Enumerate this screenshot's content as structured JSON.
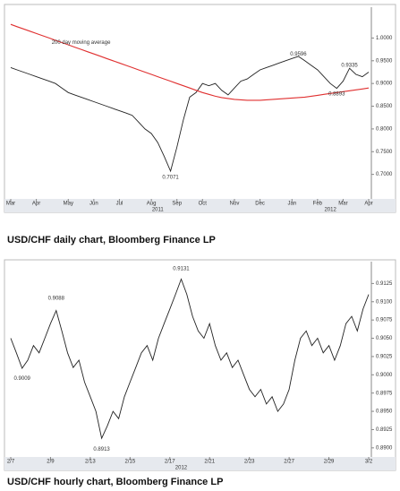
{
  "chart_data": [
    {
      "type": "line",
      "title": "USD/CHF daily chart, Bloomberg Finance LP",
      "ylim": [
        0.65,
        1.06
      ],
      "yticks": [
        {
          "value": 0.7,
          "label": "0.7000"
        },
        {
          "value": 0.75,
          "label": "0.7500"
        },
        {
          "value": 0.8,
          "label": "0.8000"
        },
        {
          "value": 0.85,
          "label": "0.8500"
        },
        {
          "value": 0.9,
          "label": "0.9000"
        },
        {
          "value": 0.95,
          "label": "0.9500"
        },
        {
          "value": 1.0,
          "label": "1.0000"
        }
      ],
      "xlim": [
        0,
        56
      ],
      "xticks": [
        {
          "value": 0,
          "label": "Mar"
        },
        {
          "value": 4,
          "label": "Apr"
        },
        {
          "value": 9,
          "label": "May"
        },
        {
          "value": 13,
          "label": "Jun"
        },
        {
          "value": 17,
          "label": "Jul"
        },
        {
          "value": 22,
          "label": "Aug"
        },
        {
          "value": 26,
          "label": "Sep"
        },
        {
          "value": 30,
          "label": "Oct"
        },
        {
          "value": 35,
          "label": "Nov"
        },
        {
          "value": 39,
          "label": "Dec"
        },
        {
          "value": 44,
          "label": "Jan"
        },
        {
          "value": 48,
          "label": "Feb"
        },
        {
          "value": 52,
          "label": "Mar"
        },
        {
          "value": 56,
          "label": "Apr"
        }
      ],
      "year_labels": [
        {
          "value": 23,
          "label": "2011"
        },
        {
          "value": 50,
          "label": "2012"
        }
      ],
      "series": [
        {
          "name": "USD/CHF",
          "color": "#222222",
          "values": [
            0.935,
            0.93,
            0.925,
            0.92,
            0.915,
            0.91,
            0.905,
            0.9,
            0.89,
            0.88,
            0.875,
            0.87,
            0.865,
            0.86,
            0.855,
            0.85,
            0.845,
            0.84,
            0.835,
            0.83,
            0.815,
            0.8,
            0.79,
            0.77,
            0.74,
            0.7071,
            0.76,
            0.82,
            0.87,
            0.88,
            0.9,
            0.895,
            0.9,
            0.885,
            0.875,
            0.89,
            0.905,
            0.91,
            0.92,
            0.93,
            0.935,
            0.94,
            0.945,
            0.95,
            0.955,
            0.9596,
            0.95,
            0.94,
            0.93,
            0.915,
            0.9,
            0.8893,
            0.905,
            0.9335,
            0.92,
            0.915,
            0.925
          ]
        },
        {
          "name": "200 day moving average",
          "color": "#e03030",
          "values": [
            1.03,
            1.025,
            1.02,
            1.015,
            1.01,
            1.005,
            1.0,
            0.995,
            0.99,
            0.985,
            0.98,
            0.975,
            0.97,
            0.965,
            0.96,
            0.955,
            0.95,
            0.945,
            0.94,
            0.935,
            0.93,
            0.925,
            0.92,
            0.915,
            0.91,
            0.905,
            0.9,
            0.895,
            0.89,
            0.885,
            0.88,
            0.876,
            0.872,
            0.869,
            0.867,
            0.865,
            0.864,
            0.863,
            0.863,
            0.863,
            0.864,
            0.865,
            0.866,
            0.867,
            0.868,
            0.869,
            0.87,
            0.872,
            0.874,
            0.876,
            0.878,
            0.88,
            0.882,
            0.884,
            0.886,
            0.888,
            0.89
          ]
        }
      ],
      "annotations": [
        {
          "text": "200 day moving average",
          "x": 11,
          "y": 0.99
        },
        {
          "text": "0.9596",
          "x": 45,
          "y": 0.965
        },
        {
          "text": "0.9335",
          "x": 53,
          "y": 0.94
        },
        {
          "text": "0.8893",
          "x": 51,
          "y": 0.877
        },
        {
          "text": "0.7071",
          "x": 25,
          "y": 0.694
        }
      ]
    },
    {
      "type": "line",
      "title": "USD/CHF hourly chart, Bloomberg Finance LP",
      "ylim": [
        0.889,
        0.915
      ],
      "yticks": [
        {
          "value": 0.89,
          "label": "0.8900"
        },
        {
          "value": 0.8925,
          "label": "0.8925"
        },
        {
          "value": 0.895,
          "label": "0.8950"
        },
        {
          "value": 0.8975,
          "label": "0.8975"
        },
        {
          "value": 0.9,
          "label": "0.9000"
        },
        {
          "value": 0.9025,
          "label": "0.9025"
        },
        {
          "value": 0.905,
          "label": "0.9050"
        },
        {
          "value": 0.9075,
          "label": "0.9075"
        },
        {
          "value": 0.91,
          "label": "0.9100"
        },
        {
          "value": 0.9125,
          "label": "0.9125"
        }
      ],
      "xlim": [
        0,
        63
      ],
      "xticks": [
        {
          "value": 0,
          "label": "2/7"
        },
        {
          "value": 7,
          "label": "2/9"
        },
        {
          "value": 14,
          "label": "2/13"
        },
        {
          "value": 21,
          "label": "2/15"
        },
        {
          "value": 28,
          "label": "2/17"
        },
        {
          "value": 35,
          "label": "2/21"
        },
        {
          "value": 42,
          "label": "2/23"
        },
        {
          "value": 49,
          "label": "2/27"
        },
        {
          "value": 56,
          "label": "2/29"
        },
        {
          "value": 63,
          "label": "3/2"
        }
      ],
      "year_labels": [
        {
          "value": 30,
          "label": "2012"
        }
      ],
      "series": [
        {
          "name": "USD/CHF",
          "color": "#222222",
          "values": [
            0.905,
            0.903,
            0.9009,
            0.902,
            0.904,
            0.903,
            0.905,
            0.907,
            0.9088,
            0.906,
            0.903,
            0.901,
            0.902,
            0.899,
            0.897,
            0.895,
            0.8913,
            0.893,
            0.895,
            0.894,
            0.897,
            0.899,
            0.901,
            0.903,
            0.904,
            0.902,
            0.905,
            0.907,
            0.909,
            0.911,
            0.9131,
            0.911,
            0.908,
            0.906,
            0.905,
            0.907,
            0.904,
            0.902,
            0.903,
            0.901,
            0.902,
            0.9,
            0.898,
            0.897,
            0.898,
            0.896,
            0.897,
            0.895,
            0.896,
            0.898,
            0.902,
            0.905,
            0.906,
            0.904,
            0.905,
            0.903,
            0.904,
            0.902,
            0.904,
            0.907,
            0.908,
            0.906,
            0.909,
            0.911
          ]
        }
      ],
      "annotations": [
        {
          "text": "0.9088",
          "x": 8,
          "y": 0.9105
        },
        {
          "text": "0.9131",
          "x": 30,
          "y": 0.9145
        },
        {
          "text": "0.9009",
          "x": 2,
          "y": 0.8995
        },
        {
          "text": "0.8913",
          "x": 16,
          "y": 0.8898
        }
      ]
    }
  ]
}
